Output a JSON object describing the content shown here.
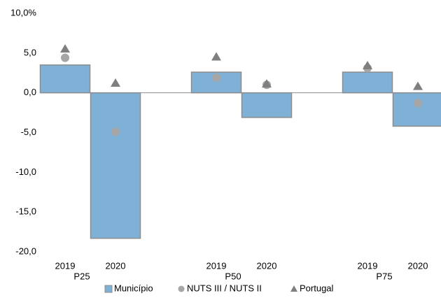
{
  "chart_data": {
    "type": "bar",
    "categories": [
      "2019",
      "2020",
      null,
      "2019",
      "2020",
      null,
      "2019",
      "2020"
    ],
    "groups": [
      "P25",
      "P50",
      "P75"
    ],
    "series": [
      {
        "name": "Município",
        "color": "#7fb1d6",
        "marker": "bar",
        "values": [
          3.5,
          -18.3,
          null,
          2.6,
          -3.1,
          null,
          2.6,
          -4.2
        ]
      },
      {
        "name": "NUTS III / NUTS II",
        "color": "#a6a6a6",
        "marker": "circle",
        "values": [
          4.4,
          -4.9,
          null,
          1.9,
          1.0,
          null,
          3.1,
          -1.3
        ]
      },
      {
        "name": "Portugal",
        "color": "#7f7f7f",
        "marker": "triangle",
        "values": [
          5.5,
          1.2,
          null,
          4.5,
          1.1,
          null,
          3.4,
          0.8
        ]
      }
    ],
    "ylim": [
      -20,
      10
    ],
    "yticks": [
      {
        "value": 10,
        "label": "10,0%"
      },
      {
        "value": 5,
        "label": "5,0"
      },
      {
        "value": 0,
        "label": "0,0"
      },
      {
        "value": -5,
        "label": "-5,0"
      },
      {
        "value": -10,
        "label": "-10,0"
      },
      {
        "value": -15,
        "label": "-15,0"
      },
      {
        "value": -20,
        "label": "-20,0"
      }
    ],
    "grid": false
  }
}
